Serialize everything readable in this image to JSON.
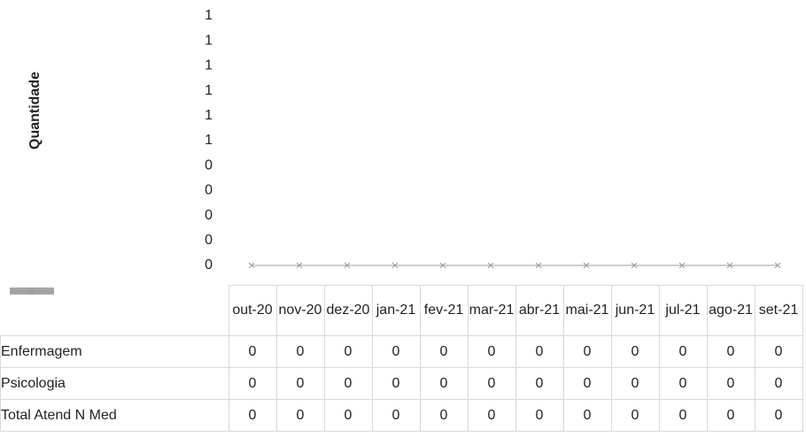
{
  "chart_data": {
    "type": "bar",
    "y_axis_label": "Quantidade",
    "categories": [
      "out-20",
      "nov-20",
      "dez-20",
      "jan-21",
      "fev-21",
      "mar-21",
      "abr-21",
      "mai-21",
      "jun-21",
      "jul-21",
      "ago-21",
      "set-21"
    ],
    "series": [
      {
        "name": "Enfermagem",
        "type": "bar",
        "color": "#555555",
        "values": [
          0,
          0,
          0,
          0,
          0,
          0,
          0,
          0,
          0,
          0,
          0,
          0
        ]
      },
      {
        "name": "Psicologia",
        "type": "bar",
        "color": "#a6a6a6",
        "values": [
          0,
          0,
          0,
          0,
          0,
          0,
          0,
          0,
          0,
          0,
          0,
          0
        ]
      },
      {
        "name": "Total Atend N Med",
        "type": "line",
        "color": "#9a9a9a",
        "values": [
          0,
          0,
          0,
          0,
          0,
          0,
          0,
          0,
          0,
          0,
          0,
          0
        ]
      }
    ],
    "ylim": [
      0,
      1
    ],
    "yticks": [
      0,
      {
        "value": 0.1,
        "label": "0"
      },
      {
        "value": 0.2,
        "label": "0"
      },
      {
        "value": 0.3,
        "label": "0"
      },
      {
        "value": 0.4,
        "label": "0"
      },
      {
        "value": 0.5,
        "label": "1"
      },
      {
        "value": 0.6,
        "label": "1"
      },
      {
        "value": 0.7,
        "label": "1"
      },
      {
        "value": 0.8,
        "label": "1"
      },
      {
        "value": 0.9,
        "label": "1"
      },
      1
    ],
    "data_table": true
  }
}
